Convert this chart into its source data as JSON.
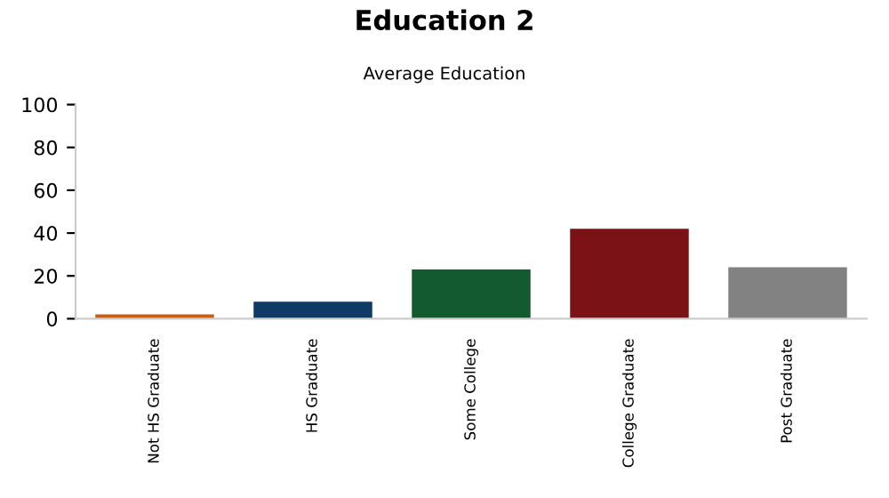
{
  "chart_data": {
    "type": "bar",
    "title": "Education 2",
    "subtitle": "Average Education",
    "categories": [
      "Not HS Graduate",
      "HS Graduate",
      "Some College",
      "College Graduate",
      "Post Graduate"
    ],
    "values": [
      2,
      8,
      23,
      42,
      24
    ],
    "colors": [
      "#c0601c",
      "#0f3a66",
      "#145a30",
      "#7a1216",
      "#828282"
    ],
    "ylim": [
      0,
      100
    ],
    "yticks": [
      0,
      20,
      40,
      60,
      80,
      100
    ],
    "grid": false
  }
}
